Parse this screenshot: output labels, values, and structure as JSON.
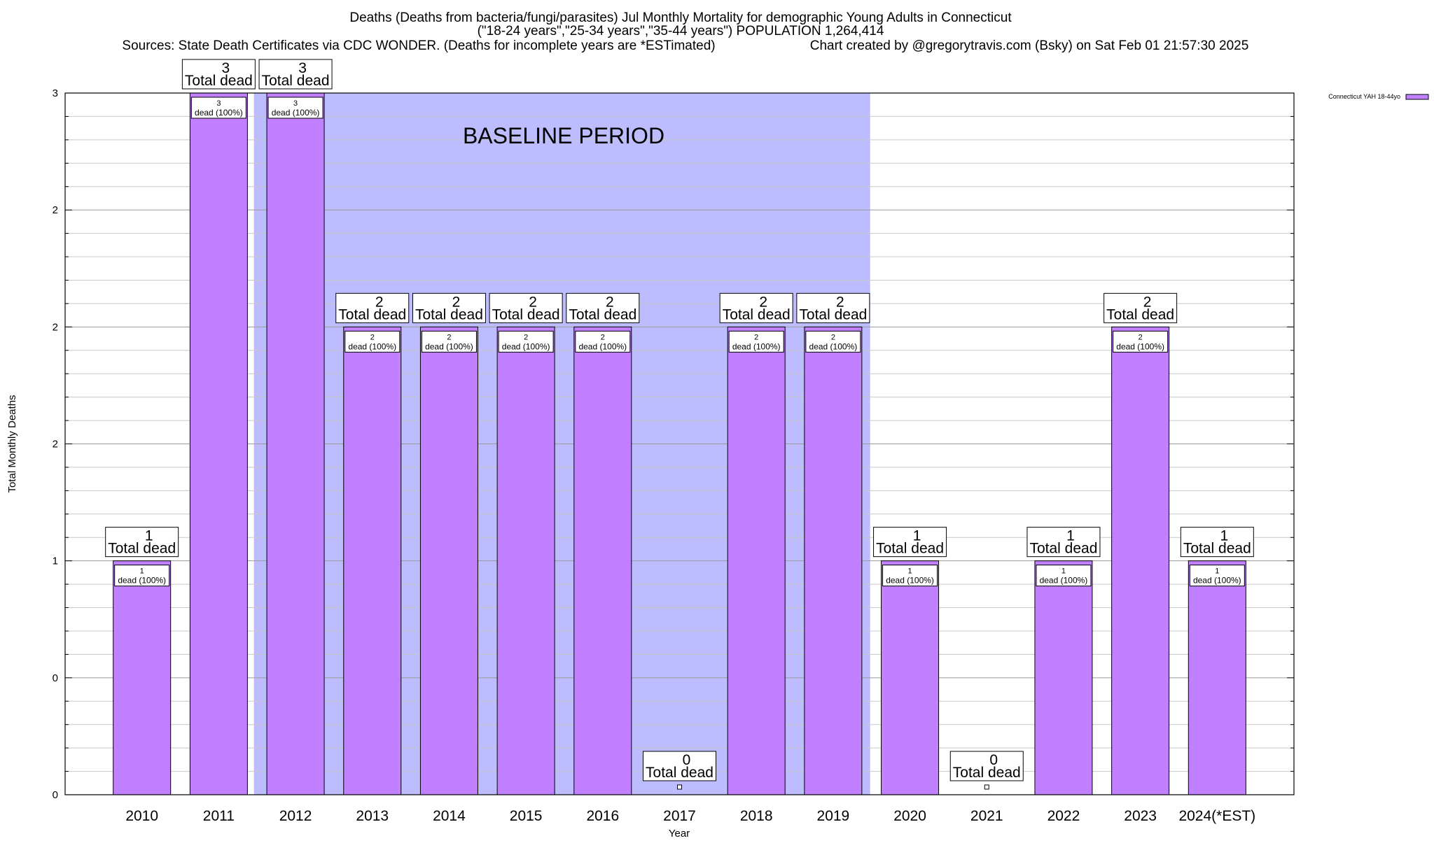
{
  "chart_data": {
    "type": "bar",
    "title_lines": [
      "Deaths (Deaths from bacteria/fungi/parasites) Jul Monthly Mortality for demographic Young Adults in Connecticut",
      "(\"18-24 years\",\"25-34 years\",\"35-44 years\") POPULATION 1,264,414"
    ],
    "sources": "Sources: State Death Certificates via CDC WONDER. (Deaths for incomplete years are *ESTimated)",
    "credit": "Chart created by @gregorytravis.com (Bsky) on Sat Feb 01 21:57:30 2025",
    "xlabel": "Year",
    "ylabel": "Total Monthly Deaths",
    "ylim": [
      0,
      3
    ],
    "y_tick_labels": [
      "0",
      "0",
      "1",
      "2",
      "2",
      "2",
      "3"
    ],
    "categories": [
      "2010",
      "2011",
      "2012",
      "2013",
      "2014",
      "2015",
      "2016",
      "2017",
      "2018",
      "2019",
      "2020",
      "2021",
      "2022",
      "2023",
      "2024(*EST)"
    ],
    "series": [
      {
        "name": "Connecticut YAH 18-44yo",
        "values": [
          1,
          3,
          3,
          2,
          2,
          2,
          2,
          0,
          2,
          2,
          1,
          0,
          1,
          2,
          1
        ]
      }
    ],
    "total_labels": [
      "1",
      "3",
      "3",
      "2",
      "2",
      "2",
      "2",
      "0",
      "2",
      "2",
      "1",
      "0",
      "1",
      "2",
      "1"
    ],
    "total_suffix": "Total dead",
    "segment_labels": [
      "1",
      "3",
      "3",
      "2",
      "2",
      "2",
      "2",
      "",
      "2",
      "2",
      "1",
      "",
      "1",
      "2",
      "1"
    ],
    "segment_suffix": "dead (100%)",
    "baseline_label": "BASELINE PERIOD",
    "baseline_span": [
      "2012",
      "2019"
    ],
    "grid": true,
    "legend_position": "top-right",
    "colors": {
      "bar": "#c080ff",
      "baseline": "#bcbcff",
      "axis": "#000000",
      "grid": "#b0b0b0"
    }
  }
}
